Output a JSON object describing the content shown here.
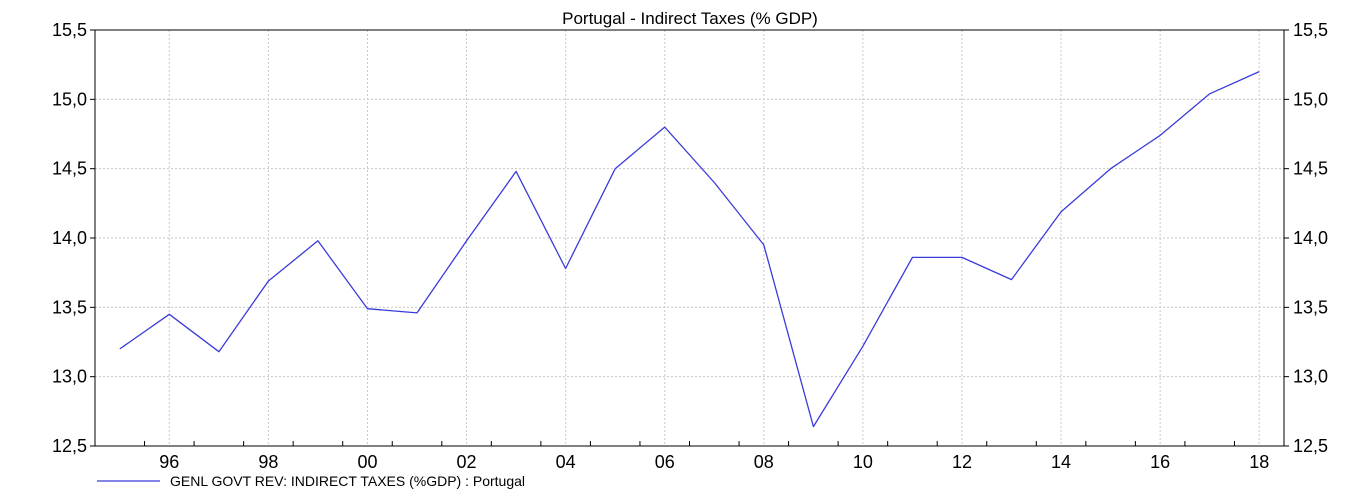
{
  "chart_data": {
    "type": "line",
    "title": "Portugal - Indirect Taxes (% GDP)",
    "xlabel": "",
    "ylabel": "",
    "x_tick_labels": [
      "96",
      "98",
      "00",
      "02",
      "04",
      "06",
      "08",
      "10",
      "12",
      "14",
      "16",
      "18"
    ],
    "y_tick_labels": [
      "12,5",
      "13,0",
      "13,5",
      "14,0",
      "14,5",
      "15,0",
      "15,5"
    ],
    "ylim": [
      12.5,
      15.5
    ],
    "xlim": [
      1995,
      2019
    ],
    "y_axis_left_and_right": true,
    "grid": true,
    "legend_position": "bottom-left",
    "series": [
      {
        "name": "GENL GOVT REV: INDIRECT TAXES (%GDP) : Portugal",
        "color": "#3b3bdb",
        "x": [
          1995,
          1996,
          1997,
          1998,
          1999,
          2000,
          2001,
          2002,
          2003,
          2004,
          2005,
          2006,
          2007,
          2008,
          2009,
          2010,
          2011,
          2012,
          2013,
          2014,
          2015,
          2016,
          2017,
          2018
        ],
        "values": [
          13.2,
          13.45,
          13.18,
          13.69,
          13.98,
          13.49,
          13.46,
          13.98,
          14.48,
          13.78,
          14.5,
          14.8,
          14.4,
          13.95,
          12.64,
          13.22,
          13.86,
          13.86,
          13.7,
          14.19,
          14.5,
          14.74,
          15.04,
          15.2
        ]
      }
    ]
  }
}
